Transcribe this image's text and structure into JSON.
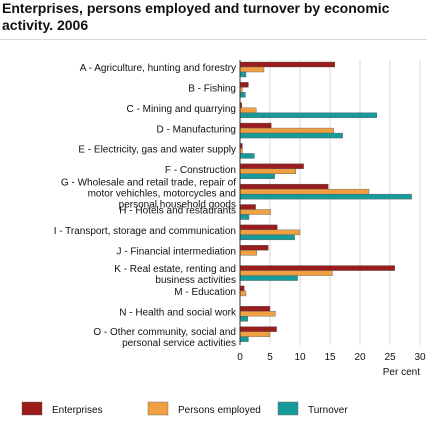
{
  "chart_data": {
    "type": "bar",
    "orientation": "horizontal",
    "title": "Enterprises, persons employed and turnover by economic activity. 2006",
    "xlabel": "Per cent",
    "xlim": [
      0,
      30
    ],
    "xticks": [
      "0",
      "5",
      "10",
      "15",
      "20",
      "25",
      "30"
    ],
    "grid": true,
    "legend_position": "bottom",
    "categories": [
      "A - Agriculture, hunting and forestry",
      "B - Fishing",
      "C - Mining and quarrying",
      "D - Manufacturing",
      "E - Electricity, gas and water supply",
      "F - Construction",
      "G - Wholesale and retail trade, repair of motor vehichles, motorcycles and personal household goods",
      "H - Hotels and restaurants",
      "I - Transport, storage and communication",
      "J - Financial intermediation",
      "K - Real estate, renting and business activities",
      "M - Education",
      "N - Health and social work",
      "O - Other community, social  and personal service activities"
    ],
    "series": [
      {
        "name": "Enterprises",
        "color": "#9b1c1c",
        "values": [
          15.8,
          1.4,
          0.3,
          5.2,
          0.4,
          10.6,
          14.7,
          2.6,
          6.2,
          4.7,
          25.8,
          0.7,
          5.0,
          6.1
        ]
      },
      {
        "name": "Persons employed",
        "color": "#f0a040",
        "values": [
          4.0,
          0.4,
          2.7,
          15.6,
          0.4,
          9.3,
          21.5,
          5.1,
          10.0,
          2.8,
          15.4,
          1.0,
          5.9,
          5.0
        ]
      },
      {
        "name": "Turnover",
        "color": "#169a9a",
        "values": [
          1.0,
          0.9,
          22.8,
          17.1,
          2.4,
          5.8,
          28.6,
          1.5,
          9.1,
          0.0,
          9.6,
          0.0,
          1.3,
          1.4
        ]
      }
    ]
  }
}
